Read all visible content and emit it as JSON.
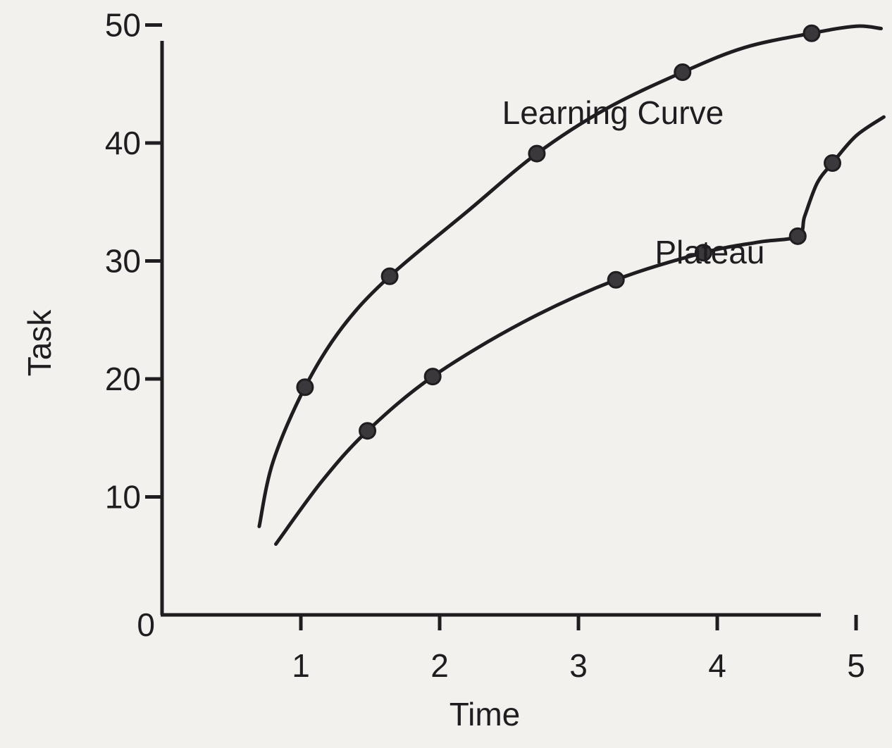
{
  "chart_data": {
    "type": "line",
    "title": "",
    "xlabel": "Time",
    "ylabel": "Task",
    "xlim": [
      0,
      5.2
    ],
    "ylim": [
      0,
      55
    ],
    "x_ticks": [
      1,
      2,
      3,
      4,
      5
    ],
    "y_ticks": [
      0,
      10,
      20,
      30,
      40,
      50
    ],
    "grid": false,
    "legend": "none",
    "series": [
      {
        "name": "Learning Curve",
        "points": [
          {
            "x": 1.03,
            "y": 19.3
          },
          {
            "x": 1.64,
            "y": 28.7
          },
          {
            "x": 2.7,
            "y": 39.1
          },
          {
            "x": 3.75,
            "y": 46.0
          },
          {
            "x": 4.68,
            "y": 49.3
          }
        ],
        "line": [
          [
            0.7,
            7.5
          ],
          [
            0.8,
            13
          ],
          [
            1.03,
            19.3
          ],
          [
            1.3,
            24.4
          ],
          [
            1.64,
            28.7
          ],
          [
            2.2,
            34.2
          ],
          [
            2.7,
            39.1
          ],
          [
            3.2,
            42.9
          ],
          [
            3.75,
            46.0
          ],
          [
            4.2,
            48.1
          ],
          [
            4.68,
            49.3
          ],
          [
            5.0,
            49.9
          ],
          [
            5.18,
            49.7
          ]
        ]
      },
      {
        "name": "Plateau",
        "points": [
          {
            "x": 1.48,
            "y": 15.6
          },
          {
            "x": 1.95,
            "y": 20.2
          },
          {
            "x": 3.27,
            "y": 28.4
          },
          {
            "x": 3.9,
            "y": 30.7
          },
          {
            "x": 4.58,
            "y": 32.1
          },
          {
            "x": 4.83,
            "y": 38.3
          }
        ],
        "line": [
          [
            0.82,
            6.0
          ],
          [
            1.15,
            11.3
          ],
          [
            1.48,
            15.6
          ],
          [
            1.95,
            20.2
          ],
          [
            2.6,
            24.8
          ],
          [
            3.27,
            28.4
          ],
          [
            3.9,
            30.7
          ],
          [
            4.3,
            31.6
          ],
          [
            4.58,
            32.1
          ],
          [
            4.63,
            33.8
          ],
          [
            4.72,
            36.6
          ],
          [
            4.83,
            38.3
          ],
          [
            5.0,
            40.6
          ],
          [
            5.2,
            42.2
          ]
        ]
      }
    ],
    "annotations": [
      {
        "id": "learning-curve",
        "text": "Learning Curve",
        "x": 2.45,
        "y": 41.6
      },
      {
        "id": "plateau",
        "text": "Plateau",
        "x": 3.55,
        "y": 29.8
      }
    ]
  }
}
